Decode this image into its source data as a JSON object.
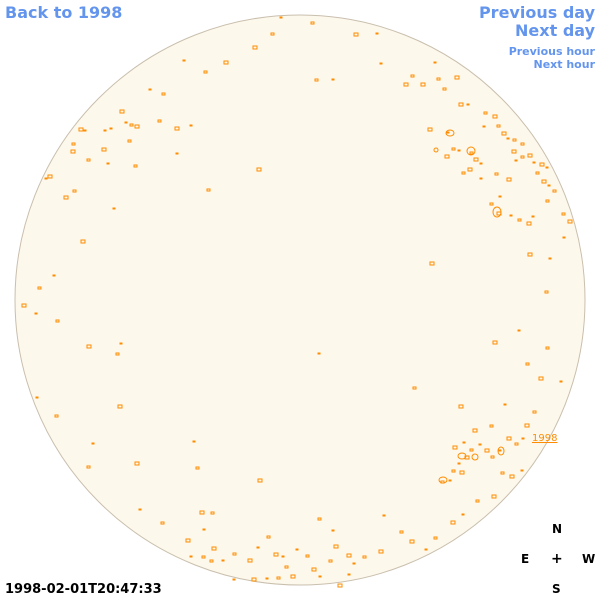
{
  "nav": {
    "back": "Back to 1998",
    "previous_day": "Previous day",
    "next_day": "Next day",
    "previous_hour": "Previous hour",
    "next_hour": "Next hour"
  },
  "region_label": "1998",
  "timestamp": "1998-02-01T20:47:33",
  "compass": {
    "n": "N",
    "e": "E",
    "center": "+",
    "w": "W",
    "s": "S"
  },
  "colors": {
    "disk_fill": "#fdf8ec",
    "disk_edge": "#c9bfae",
    "feature": "#ff8c00",
    "link": "#6495ed"
  }
}
